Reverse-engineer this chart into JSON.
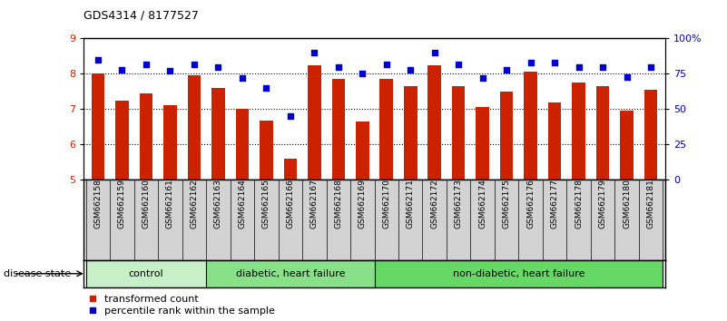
{
  "title": "GDS4314 / 8177527",
  "samples": [
    "GSM662158",
    "GSM662159",
    "GSM662160",
    "GSM662161",
    "GSM662162",
    "GSM662163",
    "GSM662164",
    "GSM662165",
    "GSM662166",
    "GSM662167",
    "GSM662168",
    "GSM662169",
    "GSM662170",
    "GSM662171",
    "GSM662172",
    "GSM662173",
    "GSM662174",
    "GSM662175",
    "GSM662176",
    "GSM662177",
    "GSM662178",
    "GSM662179",
    "GSM662180",
    "GSM662181"
  ],
  "bar_values": [
    8.0,
    7.25,
    7.45,
    7.1,
    7.95,
    7.6,
    7.0,
    6.68,
    5.6,
    8.25,
    7.85,
    6.65,
    7.85,
    7.65,
    8.25,
    7.65,
    7.05,
    7.5,
    8.05,
    7.2,
    7.75,
    7.65,
    6.95,
    7.55
  ],
  "percentile_values": [
    85,
    78,
    82,
    77,
    82,
    80,
    72,
    65,
    45,
    90,
    80,
    75,
    82,
    78,
    90,
    82,
    72,
    78,
    83,
    83,
    80,
    80,
    73,
    80
  ],
  "group_labels": [
    {
      "label": "control",
      "start": 0,
      "end": 5,
      "color": "#c8f0c8"
    },
    {
      "label": "diabetic, heart failure",
      "start": 5,
      "end": 12,
      "color": "#88e088"
    },
    {
      "label": "non-diabetic, heart failure",
      "start": 12,
      "end": 24,
      "color": "#66d866"
    }
  ],
  "bar_color": "#cc2200",
  "dot_color": "#0000cc",
  "ylim_left": [
    5,
    9
  ],
  "ylim_right": [
    0,
    100
  ],
  "yticks_left": [
    5,
    6,
    7,
    8,
    9
  ],
  "yticks_right": [
    0,
    25,
    50,
    75,
    100
  ],
  "ytick_labels_right": [
    "0",
    "25",
    "50",
    "75",
    "100%"
  ],
  "grid_values": [
    6,
    7,
    8
  ],
  "bg_color": "#ffffff",
  "gray_bg": "#d3d3d3",
  "axis_label_color_left": "#cc2200",
  "axis_label_color_right": "#0000cc",
  "legend_red_label": "transformed count",
  "legend_blue_label": "percentile rank within the sample",
  "disease_state_label": "disease state"
}
